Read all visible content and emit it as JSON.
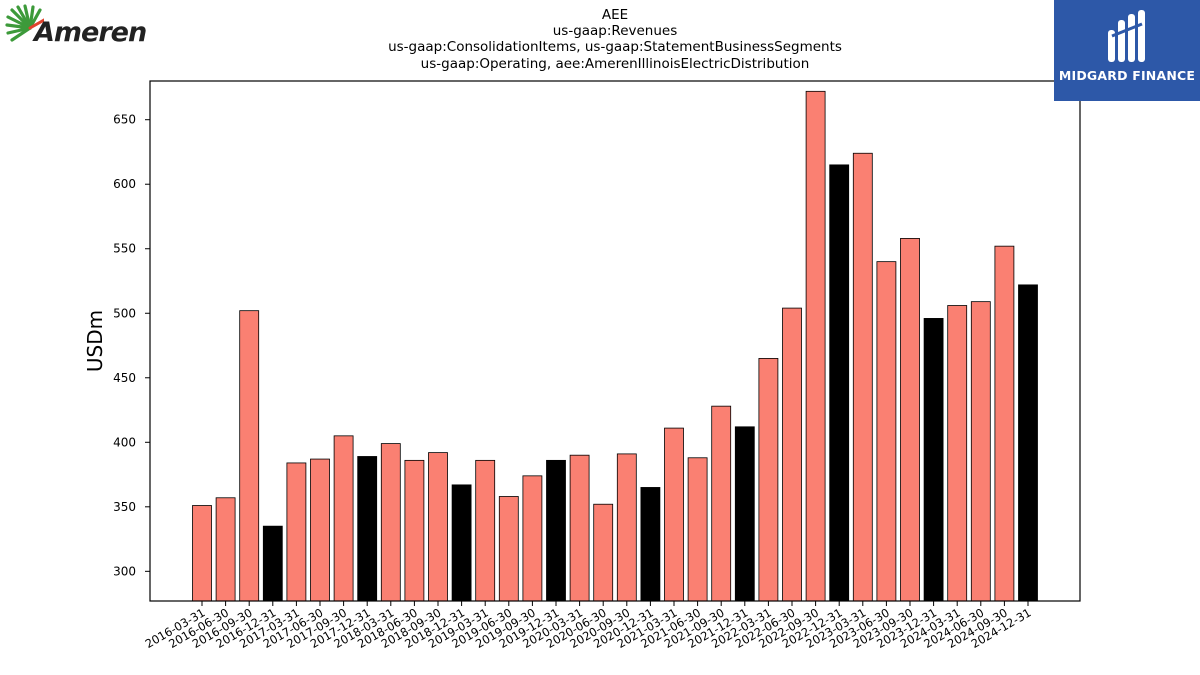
{
  "header": {
    "title_lines": [
      "AEE",
      "us-gaap:Revenues",
      "us-gaap:ConsolidationItems, us-gaap:StatementBusinessSegments",
      "us-gaap:Operating, aee:AmerenIllinoisElectricDistribution"
    ]
  },
  "logos": {
    "left_name": "Ameren",
    "right_name": "MIDGARD FINANCE"
  },
  "colors": {
    "quarter_bar": "#fa8072",
    "year_end_bar": "#000000",
    "midgard_bg": "#2d58a8",
    "ameren_green": "#3d9a3a",
    "ameren_red": "#e0432c"
  },
  "chart_data": {
    "type": "bar",
    "title": "AEE us-gaap:Revenues us-gaap:ConsolidationItems, us-gaap:StatementBusinessSegments us-gaap:Operating, aee:AmerenIllinoisElectricDistribution",
    "xlabel": "",
    "ylabel": "USDm",
    "ylim": [
      277,
      680
    ],
    "yticks": [
      300,
      350,
      400,
      450,
      500,
      550,
      600,
      650
    ],
    "grid": false,
    "categories": [
      "2016-03-31",
      "2016-06-30",
      "2016-09-30",
      "2016-12-31",
      "2017-03-31",
      "2017-06-30",
      "2017-09-30",
      "2017-12-31",
      "2018-03-31",
      "2018-06-30",
      "2018-09-30",
      "2018-12-31",
      "2019-03-31",
      "2019-06-30",
      "2019-09-30",
      "2019-12-31",
      "2020-03-31",
      "2020-06-30",
      "2020-09-30",
      "2020-12-31",
      "2021-03-31",
      "2021-06-30",
      "2021-09-30",
      "2021-12-31",
      "2022-03-31",
      "2022-06-30",
      "2022-09-30",
      "2022-12-31",
      "2023-03-31",
      "2023-06-30",
      "2023-09-30",
      "2023-12-31",
      "2024-03-31",
      "2024-06-30",
      "2024-09-30",
      "2024-12-31"
    ],
    "values": [
      351,
      357,
      502,
      335,
      384,
      387,
      405,
      389,
      399,
      386,
      392,
      367,
      386,
      358,
      374,
      386,
      390,
      352,
      391,
      365,
      411,
      388,
      428,
      412,
      465,
      504,
      672,
      615,
      624,
      540,
      558,
      496,
      506,
      509,
      552,
      522
    ]
  }
}
